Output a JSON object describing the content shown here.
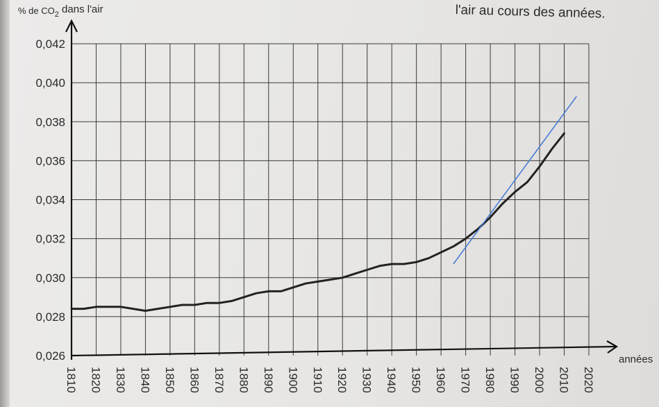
{
  "header": {
    "caption": "l'air au cours des années."
  },
  "colors": {
    "background": "#e7e6e4",
    "grid": "#3a3a3a",
    "curve": "#222222",
    "tangent": "#4a7ed6"
  },
  "chart_data": {
    "type": "line",
    "title": "",
    "ylabel_prefix": "% de CO",
    "ylabel_sub": "2",
    "ylabel_suffix": " dans l'air",
    "xlabel": "années",
    "xlim": [
      1810,
      2020
    ],
    "ylim": [
      0.026,
      0.042
    ],
    "grid": true,
    "x_ticks": [
      1810,
      1820,
      1830,
      1840,
      1850,
      1860,
      1870,
      1880,
      1890,
      1900,
      1910,
      1920,
      1930,
      1940,
      1950,
      1960,
      1970,
      1980,
      1990,
      2000,
      2010,
      2020
    ],
    "y_ticks": [
      "0,026",
      "0,028",
      "0,030",
      "0,032",
      "0,034",
      "0,036",
      "0,038",
      "0,040",
      "0,042"
    ],
    "series": [
      {
        "x": [
          1810,
          1815,
          1820,
          1825,
          1830,
          1835,
          1840,
          1845,
          1850,
          1855,
          1860,
          1865,
          1870,
          1875,
          1880,
          1885,
          1890,
          1895,
          1900,
          1905,
          1910,
          1915,
          1920,
          1925,
          1930,
          1935,
          1940,
          1945,
          1950,
          1955,
          1960,
          1965,
          1970,
          1975,
          1980,
          1985,
          1990,
          1995,
          2000,
          2005,
          2010
        ],
        "y": [
          0.0284,
          0.0284,
          0.0285,
          0.0285,
          0.0285,
          0.0284,
          0.0283,
          0.0284,
          0.0285,
          0.0286,
          0.0286,
          0.0287,
          0.0287,
          0.0288,
          0.029,
          0.0292,
          0.0293,
          0.0293,
          0.0295,
          0.0297,
          0.0298,
          0.0299,
          0.03,
          0.0302,
          0.0304,
          0.0306,
          0.0307,
          0.0307,
          0.0308,
          0.031,
          0.0313,
          0.0316,
          0.032,
          0.0325,
          0.0331,
          0.0338,
          0.0344,
          0.0349,
          0.0357,
          0.0366,
          0.0374
        ]
      }
    ],
    "tangent_line": {
      "x": [
        1965,
        2015
      ],
      "y": [
        0.0307,
        0.0393
      ]
    }
  }
}
